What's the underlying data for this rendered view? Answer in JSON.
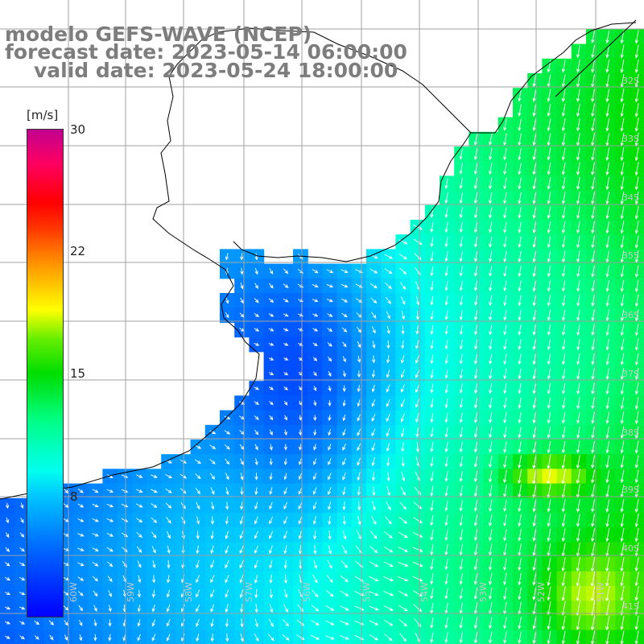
{
  "title": {
    "line1": "modelo GEFS-WAVE (NCEP)",
    "line2": "forecast date: 2023-05-14 06:00:00",
    "line3": "valid date: 2023-05-24 18:00:00"
  },
  "colorbar": {
    "unit": "[m/s]",
    "ticks": [
      "30",
      "22",
      "15",
      "8"
    ],
    "tick_values": [
      30,
      22,
      15,
      8
    ],
    "range": [
      0,
      30
    ]
  },
  "lat_labels": [
    "32S",
    "33S",
    "34S",
    "35S",
    "36S",
    "37S",
    "38S",
    "39S",
    "40S",
    "41S"
  ],
  "lon_labels": [
    "60W",
    "59W",
    "58W",
    "57W",
    "56W",
    "55W",
    "54W",
    "53W",
    "52W",
    "51W"
  ],
  "colors": {
    "land": "#ffffff",
    "grid": "#a0a0a0",
    "coast": "#000000",
    "arrows": "#ffffff",
    "title": "#7d7d7d"
  }
}
